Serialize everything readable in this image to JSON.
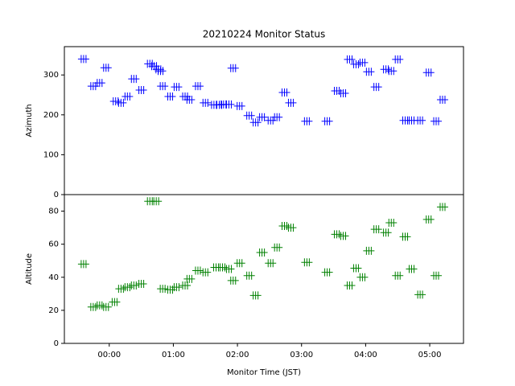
{
  "chart_data": [
    {
      "type": "scatter",
      "title": "20210224 Monitor Status",
      "ylabel": "Azimuth",
      "color": "#0000ff",
      "xlim": [
        -42,
        331.6
      ],
      "ylim": [
        0,
        371
      ],
      "yticks": [
        0,
        100,
        200,
        300
      ],
      "x": [
        -24,
        -15,
        -9,
        -3,
        6,
        11,
        17,
        23,
        30,
        38,
        42,
        46,
        48,
        50,
        57,
        63,
        71,
        75,
        83,
        90,
        98,
        103,
        107,
        112,
        116,
        122,
        131,
        137,
        143,
        151,
        157,
        164,
        170,
        185,
        204,
        213,
        219,
        225,
        231,
        237,
        243,
        250,
        259,
        264,
        270,
        277,
        283,
        291,
        299,
        306,
        312
      ],
      "values": [
        340,
        272,
        280,
        318,
        234,
        230,
        246,
        290,
        262,
        328,
        322,
        314,
        310,
        272,
        246,
        270,
        246,
        238,
        272,
        230,
        225,
        225,
        226,
        226,
        317,
        222,
        198,
        181,
        194,
        186,
        194,
        256,
        230,
        184,
        184,
        260,
        254,
        339,
        327,
        331,
        308,
        270,
        314,
        310,
        339,
        186,
        186,
        186,
        306,
        184,
        238
      ]
    },
    {
      "type": "scatter",
      "ylabel": "Altitude",
      "xlabel": "Monitor Time (JST)",
      "color": "#008000",
      "xlim": [
        -42,
        331.6
      ],
      "ylim": [
        0,
        90
      ],
      "yticks": [
        0,
        20,
        40,
        60,
        80
      ],
      "xticks": [
        {
          "value": 0,
          "label": "00:00"
        },
        {
          "value": 60,
          "label": "01:00"
        },
        {
          "value": 120,
          "label": "02:00"
        },
        {
          "value": 180,
          "label": "03:00"
        },
        {
          "value": 240,
          "label": "04:00"
        },
        {
          "value": 300,
          "label": "05:00"
        }
      ],
      "x": [
        -24,
        -15,
        -9,
        -3,
        5,
        11,
        17,
        23,
        30,
        38,
        44,
        50,
        57,
        63,
        71,
        75,
        83,
        90,
        100,
        106,
        112,
        116,
        122,
        131,
        137,
        143,
        151,
        157,
        164,
        170,
        185,
        204,
        213,
        219,
        225,
        231,
        237,
        243,
        250,
        259,
        264,
        270,
        277,
        283,
        291,
        299,
        306,
        312
      ],
      "values": [
        48,
        22,
        23,
        22,
        25,
        33,
        34,
        35,
        36,
        86,
        86,
        33,
        32.5,
        34,
        35,
        39,
        44,
        43,
        46,
        46,
        45,
        38,
        48.5,
        41,
        29,
        55,
        48.5,
        58,
        71,
        70,
        49,
        43,
        66,
        65,
        35,
        45.5,
        40,
        56,
        69,
        67,
        73,
        41,
        64.5,
        45,
        29.5,
        75,
        41,
        82.5
      ]
    }
  ]
}
